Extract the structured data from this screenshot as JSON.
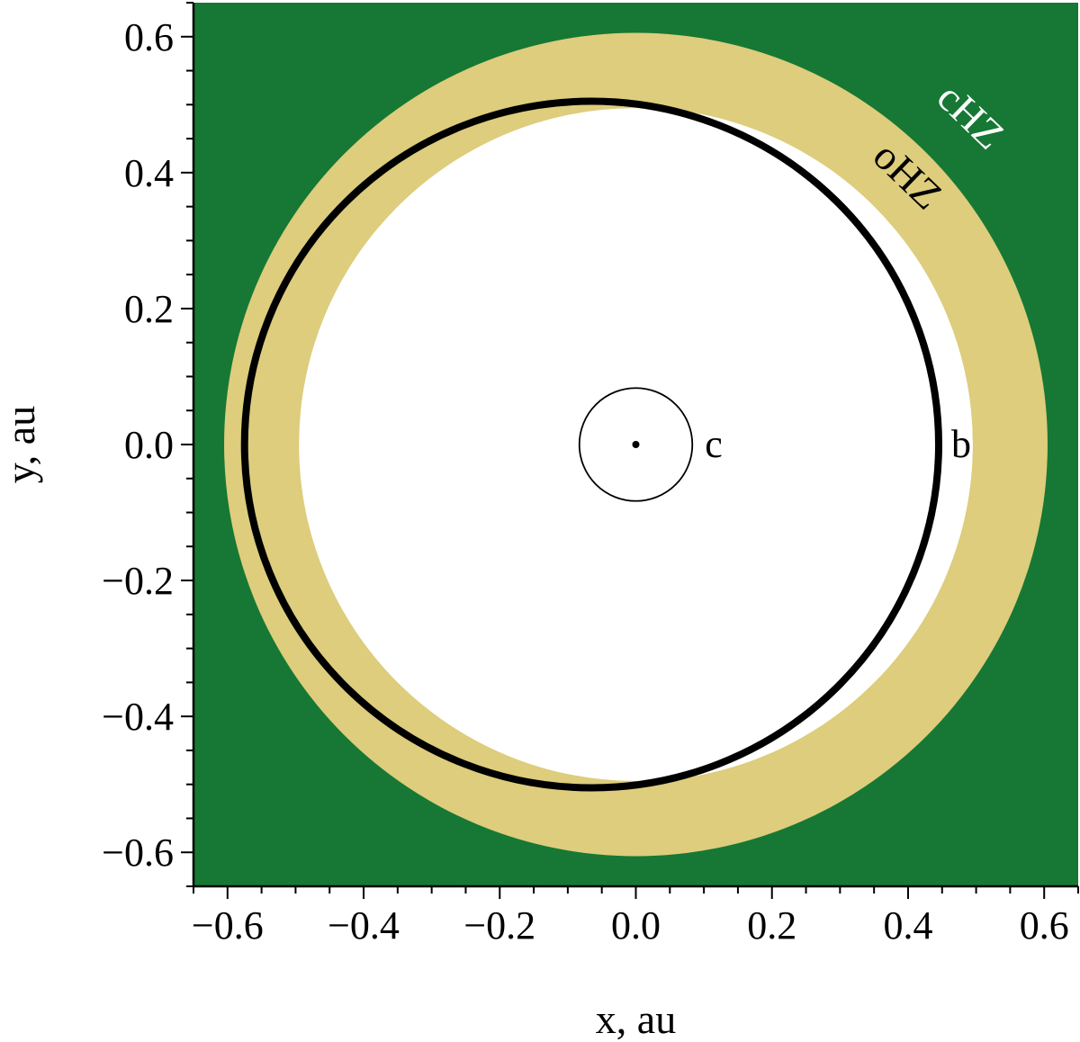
{
  "chart_data": {
    "type": "scatter",
    "xlabel": "x, au",
    "ylabel": "y, au",
    "xlim": [
      -0.65,
      0.65
    ],
    "ylim": [
      -0.65,
      0.65
    ],
    "xticks": [
      -0.6,
      -0.4,
      -0.2,
      0.0,
      0.2,
      0.4,
      0.6
    ],
    "yticks": [
      -0.6,
      -0.4,
      -0.2,
      0.0,
      0.2,
      0.4,
      0.6
    ],
    "xtick_labels": [
      "−0.6",
      "−0.4",
      "−0.2",
      "0.0",
      "0.2",
      "0.4",
      "0.6"
    ],
    "ytick_labels": [
      "−0.6",
      "−0.4",
      "−0.2",
      "0.0",
      "0.2",
      "0.4",
      "0.6"
    ],
    "minor_tick_step": 0.05,
    "background_color": "#167834",
    "zones": [
      {
        "label": "cHZ",
        "kind": "annulus",
        "center": [
          0.0,
          0.0
        ],
        "outer_radius": 0.605,
        "inner_radius": 0.495,
        "fill_color": "#ddcd7c",
        "label_color": "#ffffff"
      },
      {
        "label": "oHZ",
        "kind": "ellipse_boundary",
        "center": [
          -0.065,
          0.0
        ],
        "semi_major_axis": 0.515,
        "semi_minor_axis": 0.505,
        "fill_color": "#ddcd7c",
        "label_color": "#000000"
      }
    ],
    "interior_color": "#ffffff",
    "star": {
      "x": 0.0,
      "y": 0.0
    },
    "planets": [
      {
        "name": "b",
        "orbit": "ellipse",
        "center": [
          -0.065,
          0.0
        ],
        "semi_major_axis": 0.51,
        "semi_minor_axis": 0.505,
        "color": "#000000"
      },
      {
        "name": "c",
        "orbit": "circle",
        "center": [
          0.0,
          0.0
        ],
        "radius": 0.083,
        "color": "#000000"
      }
    ]
  }
}
